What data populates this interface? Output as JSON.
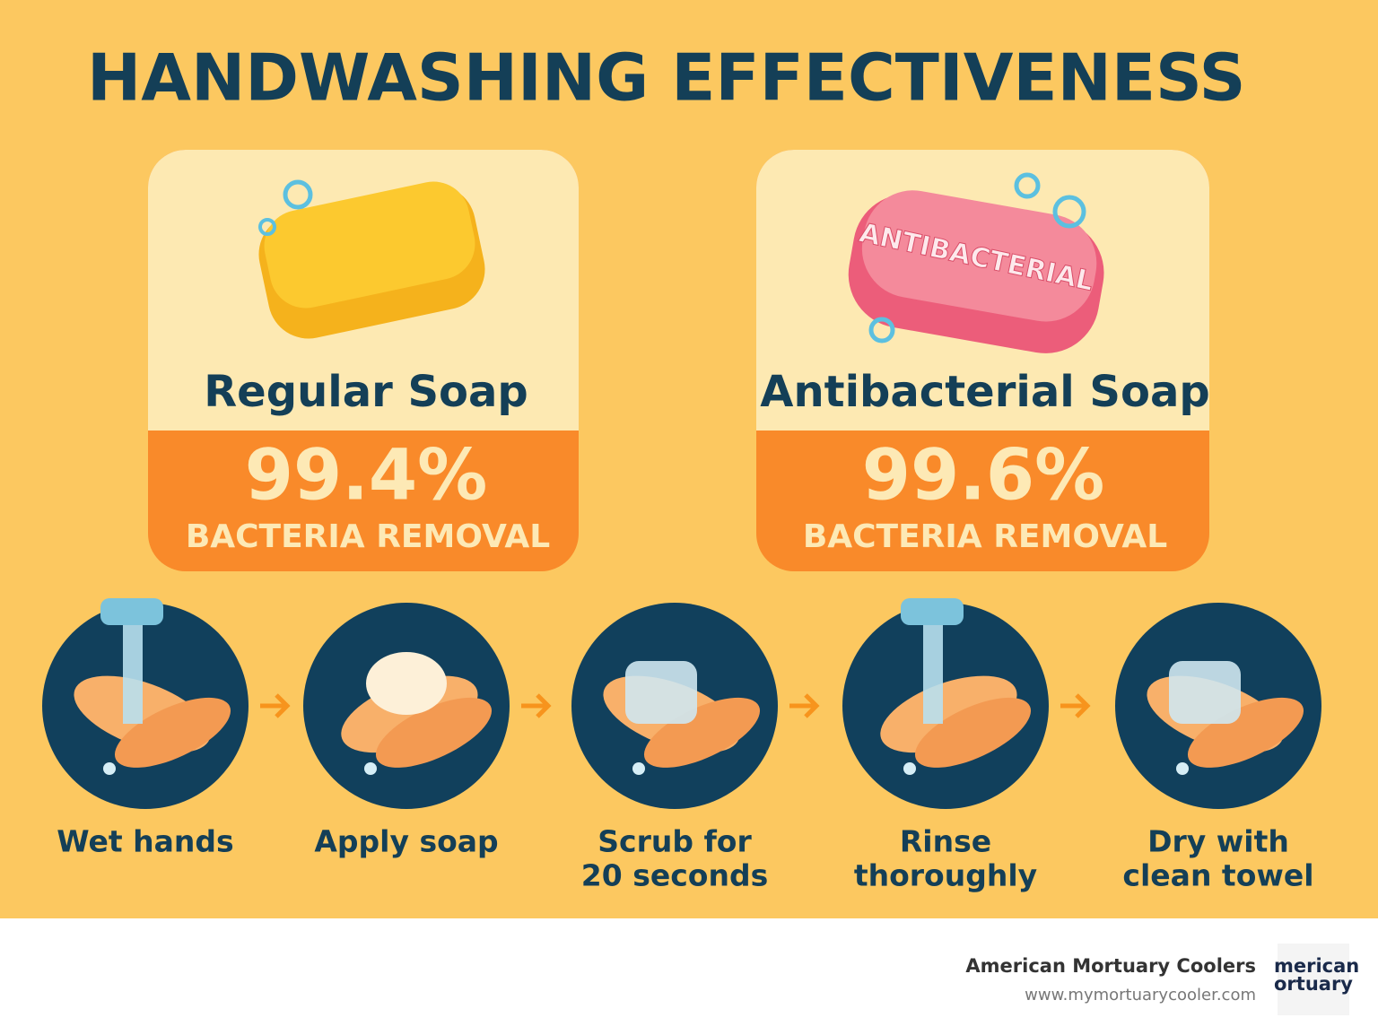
{
  "title": "HANDWASHING EFFECTIVENESS",
  "cards": [
    {
      "name": "Regular Soap",
      "percent": "99.4%",
      "caption": "BACTERIA REMOVAL"
    },
    {
      "name": "Antibacterial Soap",
      "percent": "99.6%",
      "caption": "BACTERIA REMOVAL",
      "soap_label": "ANTIBACTERIAL"
    }
  ],
  "steps": [
    {
      "lines": [
        "Wet hands"
      ]
    },
    {
      "lines": [
        "Apply soap"
      ]
    },
    {
      "lines": [
        "Scrub for",
        "20 seconds"
      ]
    },
    {
      "lines": [
        "Rinse",
        "thoroughly"
      ]
    },
    {
      "lines": [
        "Dry with",
        "clean towel"
      ]
    }
  ],
  "footer": {
    "brand": "American Mortuary Coolers",
    "url": "www.mymortuarycooler.com",
    "logo": [
      "merican",
      "ortuary"
    ]
  }
}
